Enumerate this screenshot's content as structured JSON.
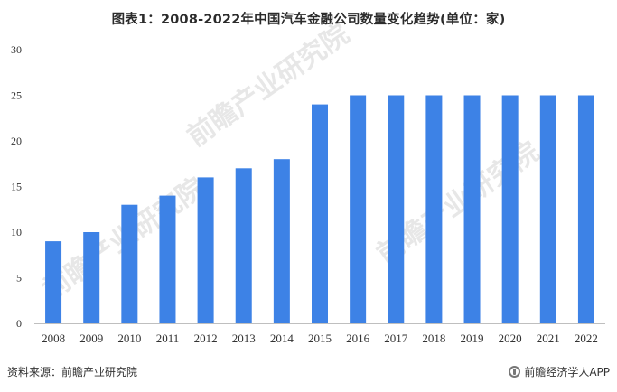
{
  "chart_data": {
    "type": "bar",
    "title": "图表1：2008-2022年中国汽车金融公司数量变化趋势(单位：家)",
    "categories": [
      "2008",
      "2009",
      "2010",
      "2011",
      "2012",
      "2013",
      "2014",
      "2015",
      "2016",
      "2017",
      "2018",
      "2019",
      "2020",
      "2021",
      "2022"
    ],
    "values": [
      9,
      10,
      13,
      14,
      16,
      17,
      18,
      24,
      25,
      25,
      25,
      25,
      25,
      25,
      25
    ],
    "xlabel": "",
    "ylabel": "",
    "ylim": [
      0,
      30
    ],
    "yticks": [
      0,
      5,
      10,
      15,
      20,
      25,
      30
    ],
    "grid": false,
    "bar_color": "#3d82e6"
  },
  "footer": {
    "source": "资料来源：前瞻产业研究院",
    "brand": "前瞻经济学人APP"
  },
  "watermark": {
    "text": "前瞻产业研究院"
  }
}
